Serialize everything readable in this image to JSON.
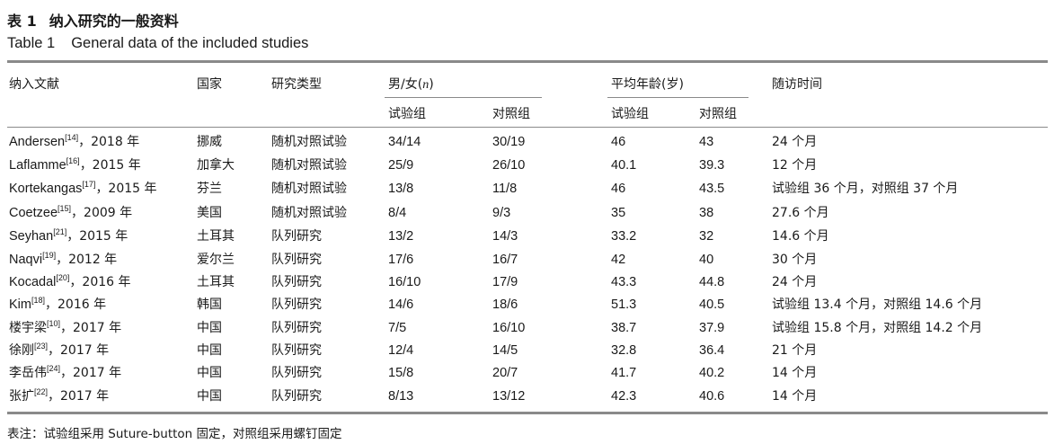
{
  "caption": {
    "cn_num": "表 1",
    "cn_text": "纳入研究的一般资料",
    "en_num": "Table 1",
    "en_text": "General data of the included studies"
  },
  "headers": {
    "study": "纳入文献",
    "country": "国家",
    "design": "研究类型",
    "sex": "男/女(n)",
    "age": "平均年龄(岁)",
    "followup": "随访时间",
    "trial": "试验组",
    "control": "对照组"
  },
  "rows": [
    {
      "author": "Andersen",
      "ref": "[14]",
      "year": "，2018 年",
      "country": "挪威",
      "design": "随机对照试验",
      "sex_trial": "34/14",
      "sex_control": "30/19",
      "age_trial": "46",
      "age_control": "43",
      "followup": "24 个月"
    },
    {
      "author": "Laflamme",
      "ref": "[16]",
      "year": "，2015 年",
      "country": "加拿大",
      "design": "随机对照试验",
      "sex_trial": "25/9",
      "sex_control": "26/10",
      "age_trial": "40.1",
      "age_control": "39.3",
      "followup": "12 个月"
    },
    {
      "author": "Kortekangas",
      "ref": "[17]",
      "year": "，2015 年",
      "country": "芬兰",
      "design": "随机对照试验",
      "sex_trial": "13/8",
      "sex_control": "11/8",
      "age_trial": "46",
      "age_control": "43.5",
      "followup": "试验组 36 个月，对照组 37 个月"
    },
    {
      "author": "Coetzee",
      "ref": "[15]",
      "year": "，2009 年",
      "country": "美国",
      "design": "随机对照试验",
      "sex_trial": "8/4",
      "sex_control": "9/3",
      "age_trial": "35",
      "age_control": "38",
      "followup": "27.6 个月"
    },
    {
      "author": "Seyhan",
      "ref": "[21]",
      "year": "，2015 年",
      "country": "土耳其",
      "design": "队列研究",
      "sex_trial": "13/2",
      "sex_control": "14/3",
      "age_trial": "33.2",
      "age_control": "32",
      "followup": "14.6 个月"
    },
    {
      "author": "Naqvi",
      "ref": "[19]",
      "year": "，2012 年",
      "country": "爱尔兰",
      "design": "队列研究",
      "sex_trial": "17/6",
      "sex_control": "16/7",
      "age_trial": "42",
      "age_control": "40",
      "followup": "30 个月"
    },
    {
      "author": "Kocadal",
      "ref": "[20]",
      "year": "，2016 年",
      "country": "土耳其",
      "design": "队列研究",
      "sex_trial": "16/10",
      "sex_control": "17/9",
      "age_trial": "43.3",
      "age_control": "44.8",
      "followup": "24 个月"
    },
    {
      "author": "Kim",
      "ref": "[18]",
      "year": "，2016 年",
      "country": "韩国",
      "design": "队列研究",
      "sex_trial": "14/6",
      "sex_control": "18/6",
      "age_trial": "51.3",
      "age_control": "40.5",
      "followup": "试验组 13.4 个月，对照组 14.6 个月"
    },
    {
      "author": "楼宇梁",
      "ref": "[10]",
      "year": "，2017 年",
      "country": "中国",
      "design": "队列研究",
      "sex_trial": "7/5",
      "sex_control": "16/10",
      "age_trial": "38.7",
      "age_control": "37.9",
      "followup": "试验组 15.8 个月，对照组 14.2 个月"
    },
    {
      "author": "徐刚",
      "ref": "[23]",
      "year": "，2017 年",
      "country": "中国",
      "design": "队列研究",
      "sex_trial": "12/4",
      "sex_control": "14/5",
      "age_trial": "32.8",
      "age_control": "36.4",
      "followup": "21 个月"
    },
    {
      "author": "李岳伟",
      "ref": "[24]",
      "year": "，2017 年",
      "country": "中国",
      "design": "队列研究",
      "sex_trial": "15/8",
      "sex_control": "20/7",
      "age_trial": "41.7",
      "age_control": "40.2",
      "followup": "14 个月"
    },
    {
      "author": "张扩",
      "ref": "[22]",
      "year": "，2017 年",
      "country": "中国",
      "design": "队列研究",
      "sex_trial": "8/13",
      "sex_control": "13/12",
      "age_trial": "42.3",
      "age_control": "40.6",
      "followup": "14 个月"
    }
  ],
  "footnote": "表注：试验组采用 Suture-button 固定，对照组采用螺钉固定"
}
